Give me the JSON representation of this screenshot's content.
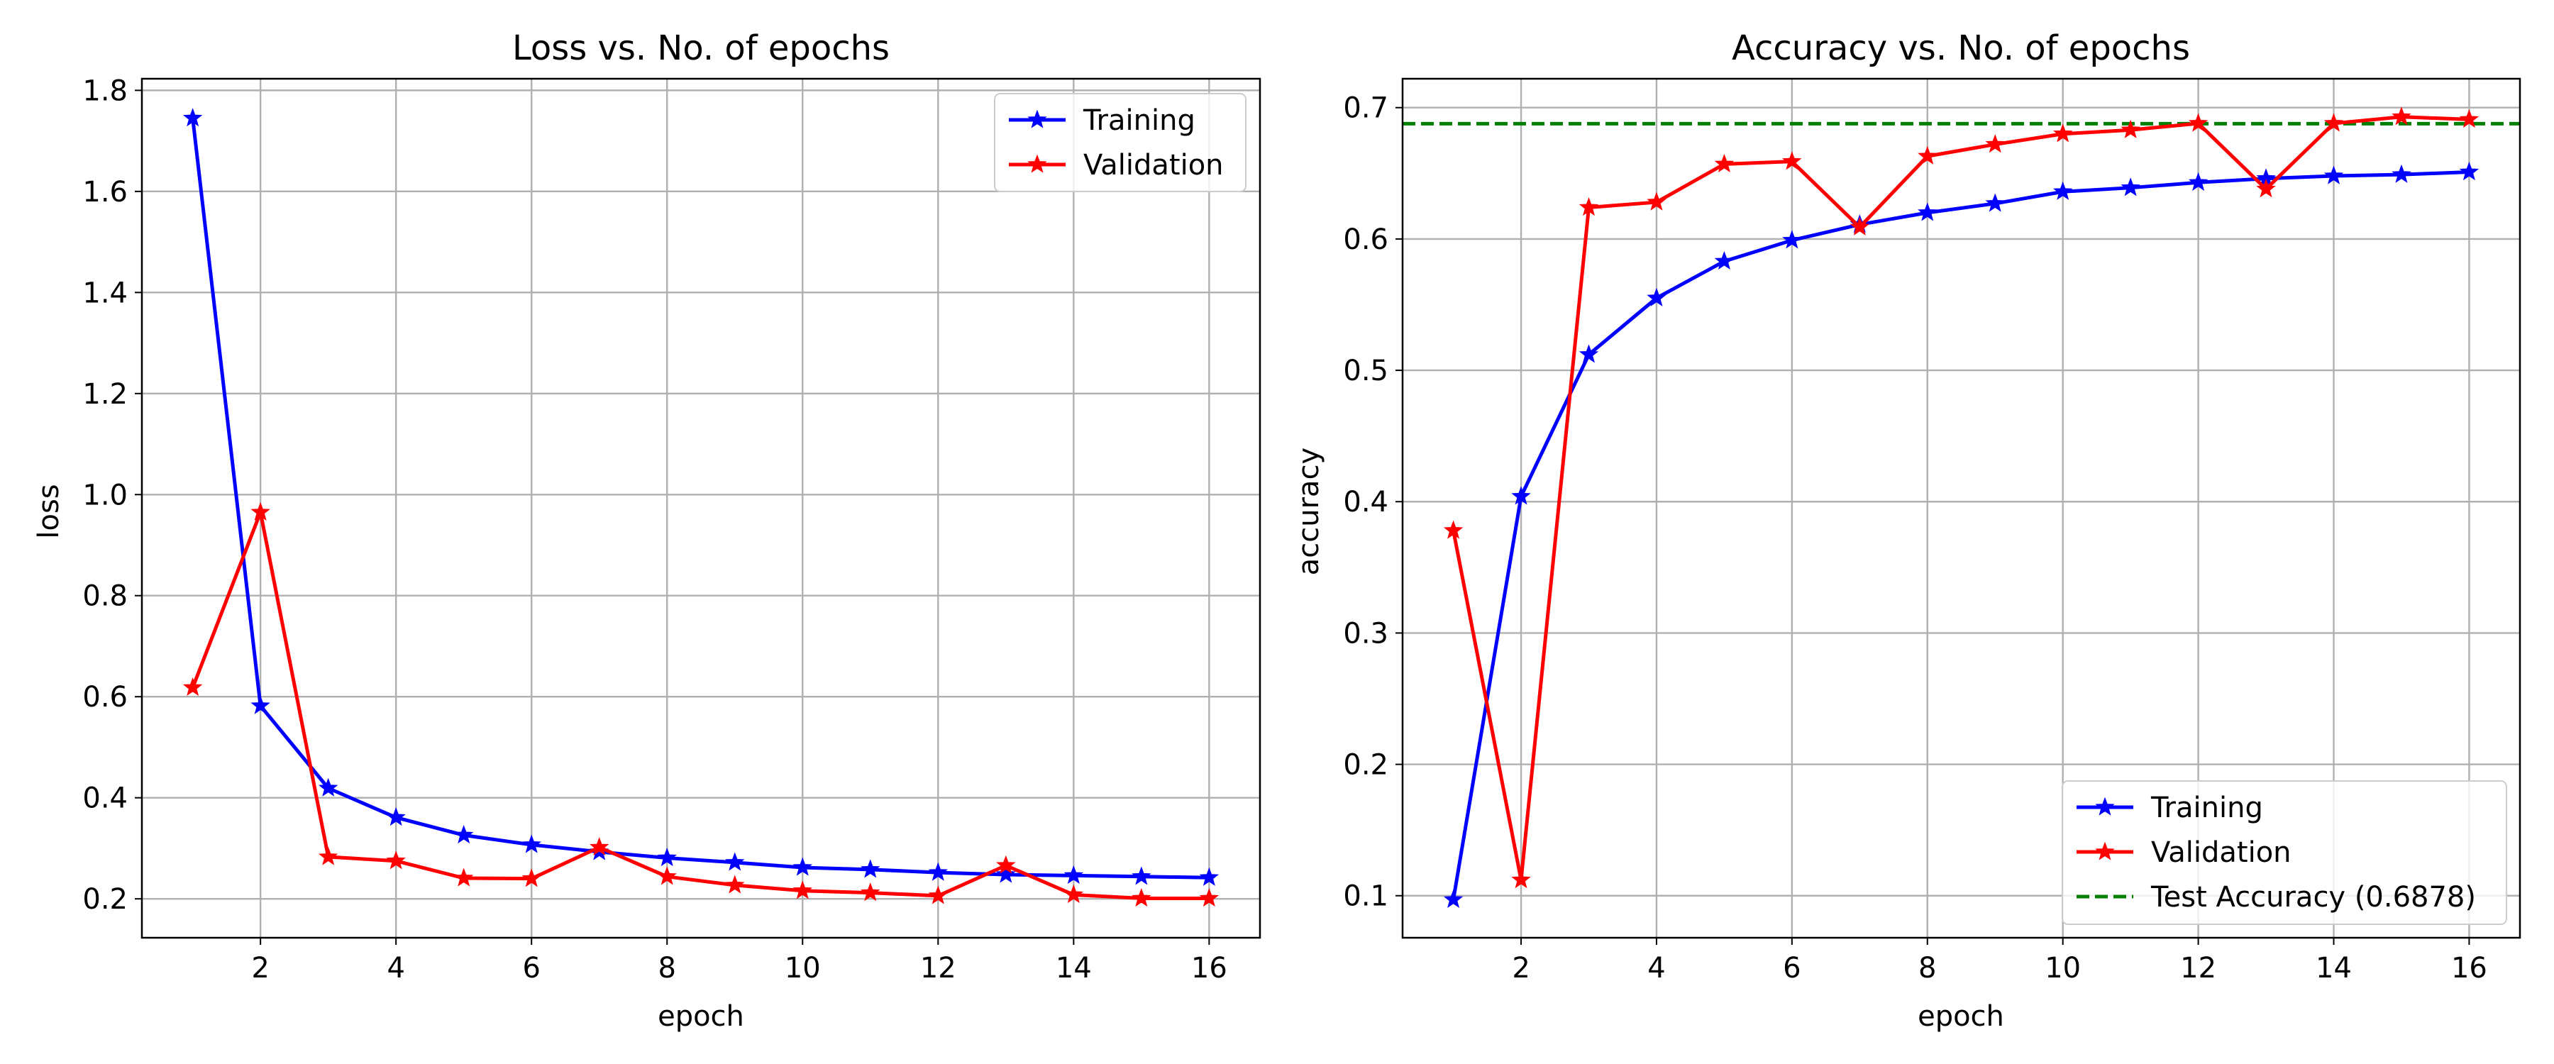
{
  "chart_data": [
    {
      "type": "line",
      "title": "Loss vs. No. of epochs",
      "xlabel": "epoch",
      "ylabel": "loss",
      "xlim": [
        0.25,
        16.75
      ],
      "ylim": [
        0.123,
        1.823
      ],
      "xticks": [
        2,
        4,
        6,
        8,
        10,
        12,
        14,
        16
      ],
      "yticks": [
        0.2,
        0.4,
        0.6,
        0.8,
        1.0,
        1.2,
        1.4,
        1.6,
        1.8
      ],
      "grid": true,
      "legend_position": "top-right",
      "x": [
        1,
        2,
        3,
        4,
        5,
        6,
        7,
        8,
        9,
        10,
        11,
        12,
        13,
        14,
        15,
        16
      ],
      "series": [
        {
          "name": "Training",
          "color": "#0000ff",
          "marker": "star",
          "values": [
            1.745,
            0.582,
            0.419,
            0.361,
            0.326,
            0.307,
            0.293,
            0.281,
            0.272,
            0.262,
            0.258,
            0.252,
            0.248,
            0.246,
            0.244,
            0.242
          ]
        },
        {
          "name": "Validation",
          "color": "#ff0000",
          "marker": "star",
          "values": [
            0.618,
            0.965,
            0.283,
            0.275,
            0.241,
            0.24,
            0.302,
            0.244,
            0.227,
            0.216,
            0.212,
            0.206,
            0.266,
            0.208,
            0.201,
            0.201
          ]
        }
      ]
    },
    {
      "type": "line",
      "title": "Accuracy vs. No. of epochs",
      "xlabel": "epoch",
      "ylabel": "accuracy",
      "xlim": [
        0.25,
        16.75
      ],
      "ylim": [
        0.068,
        0.722
      ],
      "xticks": [
        2,
        4,
        6,
        8,
        10,
        12,
        14,
        16
      ],
      "yticks": [
        0.1,
        0.2,
        0.3,
        0.4,
        0.5,
        0.6,
        0.7
      ],
      "yticklabels": [
        "0.1",
        "0.2",
        "0.3",
        "0.4",
        "0.5",
        "0.6",
        "0.7"
      ],
      "grid": true,
      "legend_position": "bottom-right",
      "x": [
        1,
        2,
        3,
        4,
        5,
        6,
        7,
        8,
        9,
        10,
        11,
        12,
        13,
        14,
        15,
        16
      ],
      "series": [
        {
          "name": "Training",
          "color": "#0000ff",
          "marker": "star",
          "values": [
            0.097,
            0.404,
            0.512,
            0.555,
            0.583,
            0.599,
            0.611,
            0.62,
            0.627,
            0.636,
            0.639,
            0.643,
            0.646,
            0.648,
            0.649,
            0.651
          ]
        },
        {
          "name": "Validation",
          "color": "#ff0000",
          "marker": "star",
          "values": [
            0.378,
            0.112,
            0.624,
            0.628,
            0.657,
            0.659,
            0.609,
            0.663,
            0.672,
            0.68,
            0.683,
            0.688,
            0.638,
            0.688,
            0.693,
            0.691
          ]
        }
      ],
      "reference_line": {
        "name": "Test Accuracy (0.6878)",
        "value": 0.6878,
        "color": "#008000",
        "style": "dashed"
      }
    }
  ]
}
